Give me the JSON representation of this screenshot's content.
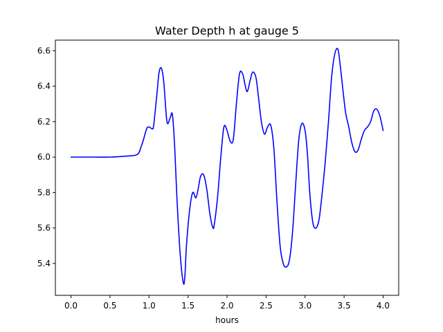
{
  "chart_data": {
    "type": "line",
    "title": "Water Depth h at gauge 5",
    "xlabel": "hours",
    "ylabel": "",
    "xlim": [
      -0.2,
      4.2
    ],
    "ylim": [
      5.22,
      6.66
    ],
    "x_ticks": [
      0.0,
      0.5,
      1.0,
      1.5,
      2.0,
      2.5,
      3.0,
      3.5,
      4.0
    ],
    "x_tick_labels": [
      "0.0",
      "0.5",
      "1.0",
      "1.5",
      "2.0",
      "2.5",
      "3.0",
      "3.5",
      "4.0"
    ],
    "y_ticks": [
      5.4,
      5.6,
      5.8,
      6.0,
      6.2,
      6.4,
      6.6
    ],
    "y_tick_labels": [
      "5.4",
      "5.6",
      "5.8",
      "6.0",
      "6.2",
      "6.4",
      "6.6"
    ],
    "grid": false,
    "series": [
      {
        "color": "#0000ff",
        "x": [
          0.0,
          0.3,
          0.5,
          0.7,
          0.85,
          0.9,
          0.93,
          0.97,
          1.0,
          1.04,
          1.06,
          1.1,
          1.13,
          1.16,
          1.19,
          1.23,
          1.27,
          1.3,
          1.33,
          1.36,
          1.4,
          1.44,
          1.46,
          1.48,
          1.52,
          1.56,
          1.6,
          1.63,
          1.66,
          1.7,
          1.74,
          1.78,
          1.82,
          1.84,
          1.88,
          1.92,
          1.96,
          2.0,
          2.04,
          2.08,
          2.12,
          2.16,
          2.2,
          2.23,
          2.26,
          2.3,
          2.33,
          2.37,
          2.4,
          2.44,
          2.48,
          2.52,
          2.56,
          2.6,
          2.64,
          2.68,
          2.72,
          2.76,
          2.8,
          2.84,
          2.88,
          2.92,
          2.96,
          3.0,
          3.03,
          3.06,
          3.1,
          3.14,
          3.18,
          3.22,
          3.26,
          3.3,
          3.34,
          3.38,
          3.42,
          3.45,
          3.48,
          3.52,
          3.56,
          3.6,
          3.64,
          3.68,
          3.72,
          3.76,
          3.8,
          3.84,
          3.88,
          3.92,
          3.96,
          4.0
        ],
        "values": [
          6.0,
          6.0,
          6.0,
          6.005,
          6.015,
          6.06,
          6.1,
          6.16,
          6.17,
          6.16,
          6.18,
          6.35,
          6.48,
          6.5,
          6.42,
          6.2,
          6.22,
          6.24,
          6.05,
          5.75,
          5.45,
          5.29,
          5.33,
          5.5,
          5.7,
          5.8,
          5.77,
          5.82,
          5.89,
          5.9,
          5.82,
          5.68,
          5.6,
          5.63,
          5.78,
          6.0,
          6.17,
          6.15,
          6.09,
          6.1,
          6.3,
          6.47,
          6.47,
          6.41,
          6.37,
          6.44,
          6.48,
          6.45,
          6.35,
          6.2,
          6.13,
          6.17,
          6.18,
          6.05,
          5.75,
          5.5,
          5.4,
          5.38,
          5.42,
          5.58,
          5.85,
          6.1,
          6.19,
          6.15,
          6.02,
          5.8,
          5.63,
          5.6,
          5.65,
          5.8,
          5.98,
          6.2,
          6.45,
          6.58,
          6.61,
          6.52,
          6.4,
          6.25,
          6.17,
          6.08,
          6.03,
          6.04,
          6.1,
          6.15,
          6.17,
          6.2,
          6.26,
          6.27,
          6.23,
          6.15
        ]
      }
    ]
  }
}
